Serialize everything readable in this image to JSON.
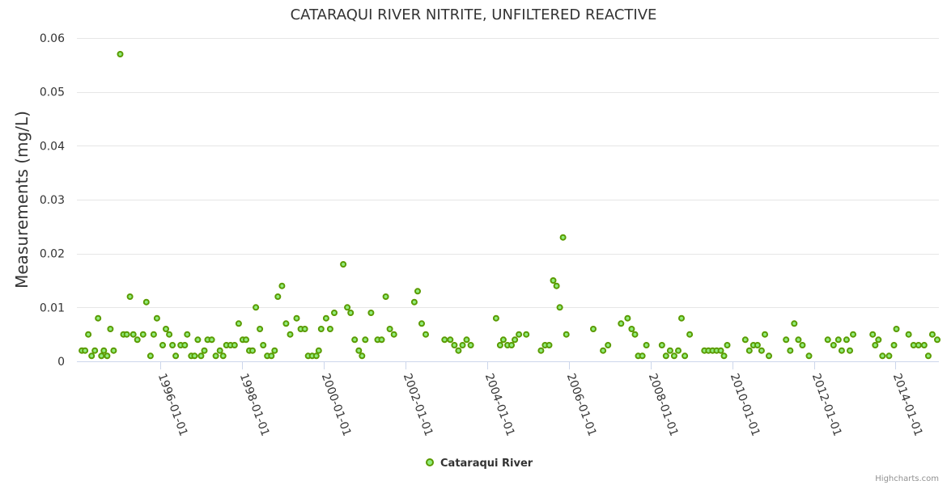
{
  "chart_data": {
    "type": "scatter",
    "title": "CATARAQUI RIVER NITRITE, UNFILTERED REACTIVE",
    "xlabel": "",
    "ylabel": "Measurements (mg/L)",
    "ylim": [
      0,
      0.06
    ],
    "y_ticks": [
      {
        "value": 0,
        "label": "0"
      },
      {
        "value": 0.01,
        "label": "0.01"
      },
      {
        "value": 0.02,
        "label": "0.02"
      },
      {
        "value": 0.03,
        "label": "0.03"
      },
      {
        "value": 0.04,
        "label": "0.04"
      },
      {
        "value": 0.05,
        "label": "0.05"
      },
      {
        "value": 0.06,
        "label": "0.06"
      }
    ],
    "xlim": [
      1993.96,
      2015.06
    ],
    "x_ticks": [
      {
        "value": 1996,
        "label": "1996-01-01"
      },
      {
        "value": 1998,
        "label": "1998-01-01"
      },
      {
        "value": 2000,
        "label": "2000-01-01"
      },
      {
        "value": 2002,
        "label": "2002-01-01"
      },
      {
        "value": 2004,
        "label": "2004-01-01"
      },
      {
        "value": 2006,
        "label": "2006-01-01"
      },
      {
        "value": 2008,
        "label": "2008-01-01"
      },
      {
        "value": 2010,
        "label": "2010-01-01"
      },
      {
        "value": 2012,
        "label": "2012-01-01"
      },
      {
        "value": 2014,
        "label": "2014-01-01"
      }
    ],
    "series": [
      {
        "name": "Cataraqui River",
        "color": "#90ed7d",
        "stroke": "#5a9a00",
        "points": [
          [
            1994.08,
            0.002
          ],
          [
            1994.16,
            0.002
          ],
          [
            1994.24,
            0.005
          ],
          [
            1994.32,
            0.001
          ],
          [
            1994.4,
            0.002
          ],
          [
            1994.48,
            0.008
          ],
          [
            1994.56,
            0.001
          ],
          [
            1994.62,
            0.002
          ],
          [
            1994.7,
            0.001
          ],
          [
            1994.78,
            0.006
          ],
          [
            1994.86,
            0.002
          ],
          [
            1995.02,
            0.057
          ],
          [
            1995.1,
            0.005
          ],
          [
            1995.18,
            0.005
          ],
          [
            1995.26,
            0.012
          ],
          [
            1995.34,
            0.005
          ],
          [
            1995.44,
            0.004
          ],
          [
            1995.58,
            0.005
          ],
          [
            1995.66,
            0.011
          ],
          [
            1995.76,
            0.001
          ],
          [
            1995.84,
            0.005
          ],
          [
            1995.92,
            0.008
          ],
          [
            1996.06,
            0.003
          ],
          [
            1996.14,
            0.006
          ],
          [
            1996.22,
            0.005
          ],
          [
            1996.3,
            0.003
          ],
          [
            1996.38,
            0.001
          ],
          [
            1996.5,
            0.003
          ],
          [
            1996.6,
            0.003
          ],
          [
            1996.66,
            0.005
          ],
          [
            1996.76,
            0.001
          ],
          [
            1996.84,
            0.001
          ],
          [
            1996.92,
            0.004
          ],
          [
            1997.0,
            0.001
          ],
          [
            1997.08,
            0.002
          ],
          [
            1997.16,
            0.004
          ],
          [
            1997.26,
            0.004
          ],
          [
            1997.36,
            0.001
          ],
          [
            1997.46,
            0.002
          ],
          [
            1997.54,
            0.001
          ],
          [
            1997.62,
            0.003
          ],
          [
            1997.72,
            0.003
          ],
          [
            1997.82,
            0.003
          ],
          [
            1997.92,
            0.007
          ],
          [
            1998.02,
            0.004
          ],
          [
            1998.1,
            0.004
          ],
          [
            1998.18,
            0.002
          ],
          [
            1998.26,
            0.002
          ],
          [
            1998.34,
            0.01
          ],
          [
            1998.44,
            0.006
          ],
          [
            1998.52,
            0.003
          ],
          [
            1998.62,
            0.001
          ],
          [
            1998.72,
            0.001
          ],
          [
            1998.8,
            0.002
          ],
          [
            1998.88,
            0.012
          ],
          [
            1998.98,
            0.014
          ],
          [
            1999.08,
            0.007
          ],
          [
            1999.18,
            0.005
          ],
          [
            1999.34,
            0.008
          ],
          [
            1999.44,
            0.006
          ],
          [
            1999.54,
            0.006
          ],
          [
            1999.62,
            0.001
          ],
          [
            1999.72,
            0.001
          ],
          [
            1999.82,
            0.001
          ],
          [
            1999.88,
            0.002
          ],
          [
            1999.94,
            0.006
          ],
          [
            2000.06,
            0.008
          ],
          [
            2000.16,
            0.006
          ],
          [
            2000.26,
            0.009
          ],
          [
            2000.48,
            0.018
          ],
          [
            2000.58,
            0.01
          ],
          [
            2000.66,
            0.009
          ],
          [
            2000.76,
            0.004
          ],
          [
            2000.86,
            0.002
          ],
          [
            2000.94,
            0.001
          ],
          [
            2001.02,
            0.004
          ],
          [
            2001.16,
            0.009
          ],
          [
            2001.32,
            0.004
          ],
          [
            2001.42,
            0.004
          ],
          [
            2001.52,
            0.012
          ],
          [
            2001.62,
            0.006
          ],
          [
            2001.72,
            0.005
          ],
          [
            2002.22,
            0.011
          ],
          [
            2002.3,
            0.013
          ],
          [
            2002.4,
            0.007
          ],
          [
            2002.5,
            0.005
          ],
          [
            2002.96,
            0.004
          ],
          [
            2003.1,
            0.004
          ],
          [
            2003.2,
            0.003
          ],
          [
            2003.3,
            0.002
          ],
          [
            2003.4,
            0.003
          ],
          [
            2003.5,
            0.004
          ],
          [
            2003.6,
            0.003
          ],
          [
            2004.22,
            0.008
          ],
          [
            2004.32,
            0.003
          ],
          [
            2004.4,
            0.004
          ],
          [
            2004.5,
            0.003
          ],
          [
            2004.6,
            0.003
          ],
          [
            2004.68,
            0.004
          ],
          [
            2004.78,
            0.005
          ],
          [
            2004.96,
            0.005
          ],
          [
            2005.32,
            0.002
          ],
          [
            2005.42,
            0.003
          ],
          [
            2005.52,
            0.003
          ],
          [
            2005.62,
            0.015
          ],
          [
            2005.7,
            0.014
          ],
          [
            2005.78,
            0.01
          ],
          [
            2005.86,
            0.023
          ],
          [
            2005.94,
            0.005
          ],
          [
            2006.6,
            0.006
          ],
          [
            2006.84,
            0.002
          ],
          [
            2006.96,
            0.003
          ],
          [
            2007.28,
            0.007
          ],
          [
            2007.44,
            0.008
          ],
          [
            2007.54,
            0.006
          ],
          [
            2007.62,
            0.005
          ],
          [
            2007.7,
            0.001
          ],
          [
            2007.8,
            0.001
          ],
          [
            2007.9,
            0.003
          ],
          [
            2008.28,
            0.003
          ],
          [
            2008.38,
            0.001
          ],
          [
            2008.48,
            0.002
          ],
          [
            2008.58,
            0.001
          ],
          [
            2008.68,
            0.002
          ],
          [
            2008.76,
            0.008
          ],
          [
            2008.84,
            0.001
          ],
          [
            2008.96,
            0.005
          ],
          [
            2009.32,
            0.002
          ],
          [
            2009.42,
            0.002
          ],
          [
            2009.52,
            0.002
          ],
          [
            2009.62,
            0.002
          ],
          [
            2009.72,
            0.002
          ],
          [
            2009.8,
            0.001
          ],
          [
            2009.88,
            0.003
          ],
          [
            2010.32,
            0.004
          ],
          [
            2010.42,
            0.002
          ],
          [
            2010.52,
            0.003
          ],
          [
            2010.62,
            0.003
          ],
          [
            2010.72,
            0.002
          ],
          [
            2010.8,
            0.005
          ],
          [
            2010.9,
            0.001
          ],
          [
            2011.32,
            0.004
          ],
          [
            2011.42,
            0.002
          ],
          [
            2011.52,
            0.007
          ],
          [
            2011.62,
            0.004
          ],
          [
            2011.72,
            0.003
          ],
          [
            2011.88,
            0.001
          ],
          [
            2012.34,
            0.004
          ],
          [
            2012.48,
            0.003
          ],
          [
            2012.6,
            0.004
          ],
          [
            2012.68,
            0.002
          ],
          [
            2012.8,
            0.004
          ],
          [
            2012.88,
            0.002
          ],
          [
            2012.96,
            0.005
          ],
          [
            2013.44,
            0.005
          ],
          [
            2013.5,
            0.003
          ],
          [
            2013.58,
            0.004
          ],
          [
            2013.68,
            0.001
          ],
          [
            2013.84,
            0.001
          ],
          [
            2013.96,
            0.003
          ],
          [
            2014.02,
            0.006
          ],
          [
            2014.32,
            0.005
          ],
          [
            2014.44,
            0.003
          ],
          [
            2014.56,
            0.003
          ],
          [
            2014.7,
            0.003
          ],
          [
            2014.8,
            0.001
          ],
          [
            2014.9,
            0.005
          ],
          [
            2015.02,
            0.004
          ]
        ]
      }
    ],
    "legend": {
      "position": "bottom-center"
    },
    "grid": true
  },
  "credits": "Highcharts.com"
}
